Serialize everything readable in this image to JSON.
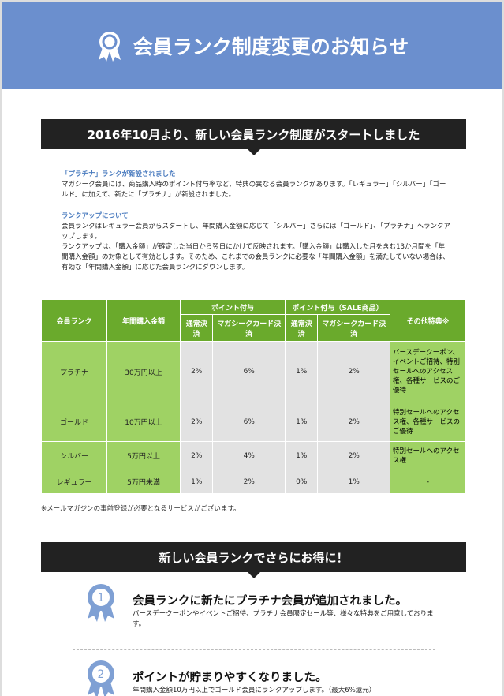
{
  "header": {
    "title": "会員ランク制度変更のお知らせ"
  },
  "section1": {
    "heading": "2016年10月より、新しい会員ランク制度がスタートしました",
    "blocks": [
      {
        "title": "「プラチナ」ランクが新設されました",
        "paragraphs": [
          "マガシーク会員には、商品購入時のポイント付与率など、特典の異なる会員ランクがあります。「レギュラー」「シルバー」「ゴールド」に加えて、新たに「プラチナ」が新設されました。"
        ]
      },
      {
        "title": "ランクアップについて",
        "paragraphs": [
          "会員ランクはレギュラー会員からスタートし、年間購入金額に応じて「シルバー」さらには「ゴールド」、「プラチナ」へランクアップします。",
          "ランクアップは、「購入金額」が確定した当日から翌日にかけて反映されます。「購入金額」は購入した月を含む13か月間を「年間購入金額」の対象として有効とします。そのため、これまでの会員ランクに必要な「年間購入金額」を満たしていない場合は、有効な「年間購入金額」に応じた会員ランクにダウンします。"
        ]
      }
    ]
  },
  "table": {
    "header": [
      "会員ランク",
      "年間購入金額",
      "ポイント付与",
      "ポイント付与（SALE商品）",
      "その他特典※"
    ],
    "subheader": [
      "通常決済",
      "マガシークカード決済",
      "通常決済",
      "マガシークカード決済"
    ],
    "rows": [
      [
        "プラチナ",
        "30万円以上",
        "2%",
        "6%",
        "1%",
        "2%",
        "バースデークーポン、イベントご招待、特別セールへのアクセス権、各種サービスのご優待"
      ],
      [
        "ゴールド",
        "10万円以上",
        "2%",
        "6%",
        "1%",
        "2%",
        "特別セールへのアクセス権、各種サービスのご優待"
      ],
      [
        "シルバー",
        "5万円以上",
        "2%",
        "4%",
        "1%",
        "2%",
        "特別セールへのアクセス権"
      ],
      [
        "レギュラー",
        "5万円未満",
        "1%",
        "2%",
        "0%",
        "1%",
        "-"
      ]
    ],
    "note": "※メールマガジンの事前登録が必要となるサービスがございます。"
  },
  "section2": {
    "heading": "新しい会員ランクでさらにお得に！",
    "items": [
      {
        "number": "1",
        "title": "会員ランクに新たにプラチナ会員が追加されました。",
        "body": "バースデークーポンやイベントご招待、プラチナ会員限定セール等、様々な特典をご用意しております。"
      },
      {
        "number": "2",
        "title": "ポイントが貯まりやすくなりました。",
        "body": "年間購入金額10万円以上でゴールド会員にランクアップします。（最大6%還元）"
      }
    ]
  }
}
